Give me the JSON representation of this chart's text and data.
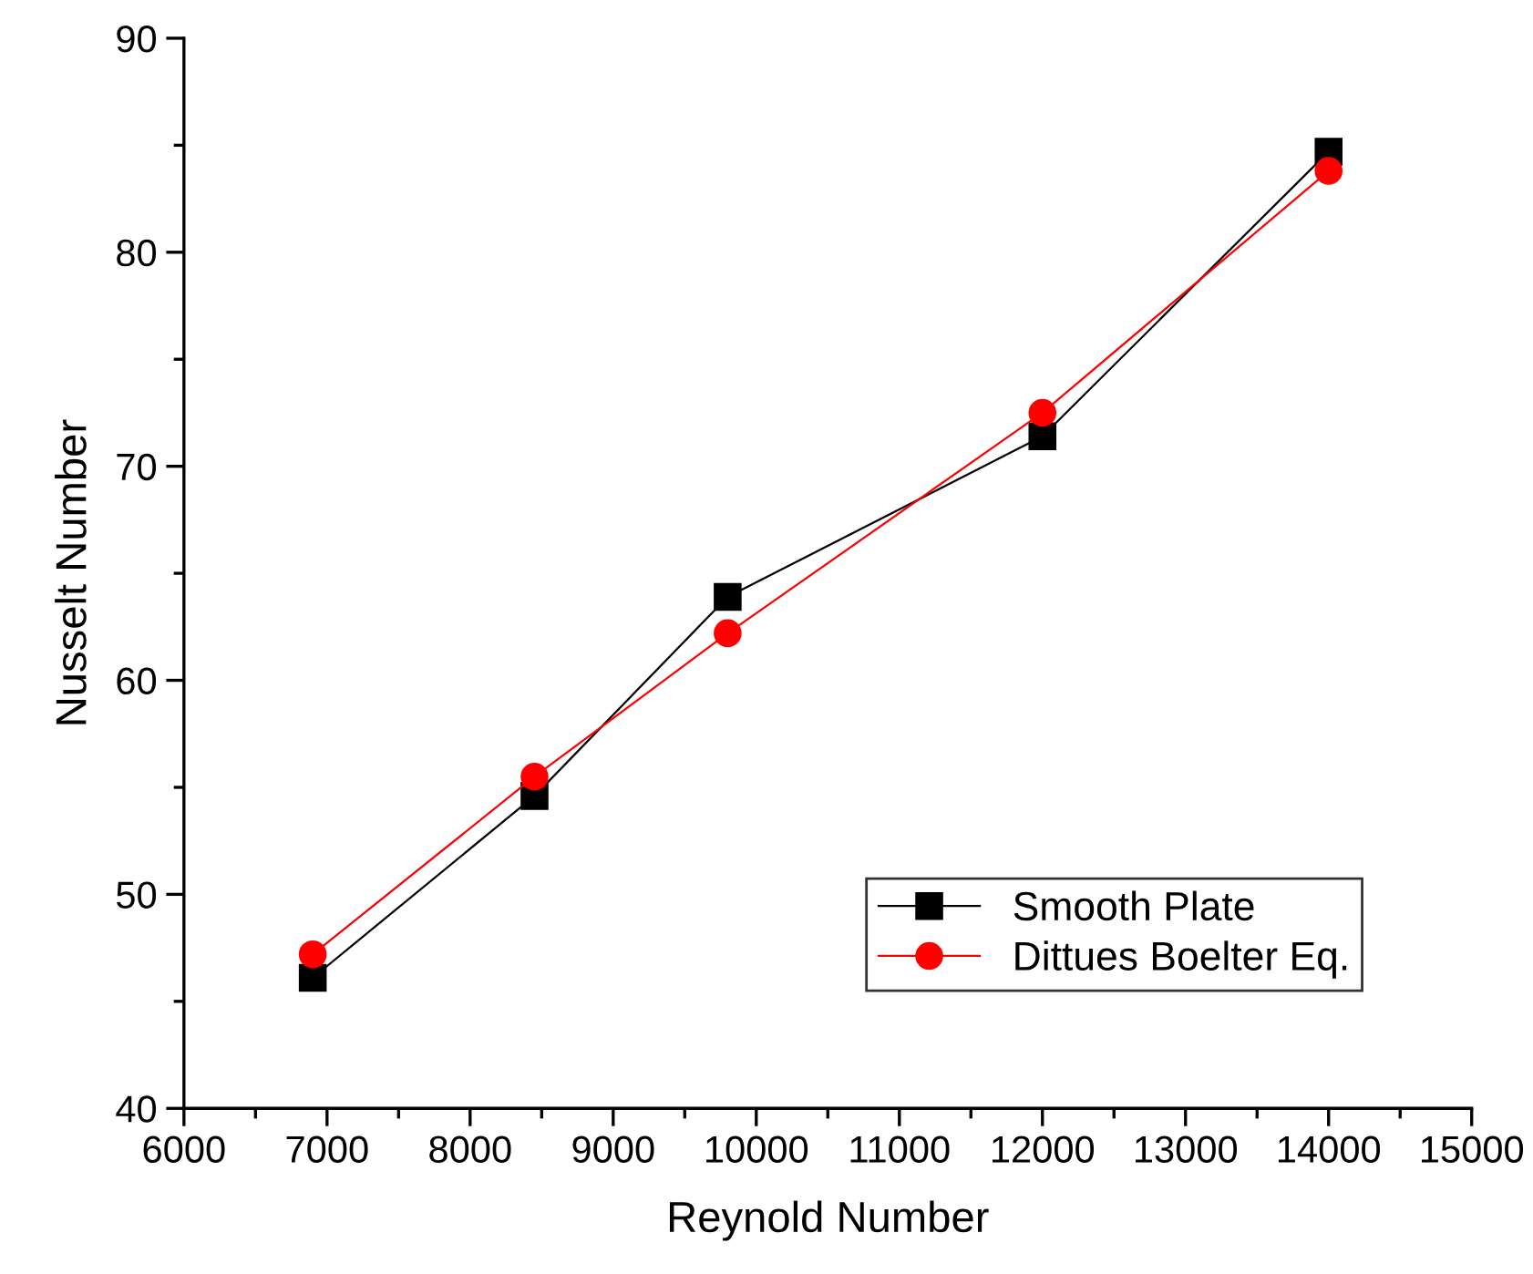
{
  "chart_data": {
    "type": "line",
    "xlabel": "Reynold Number",
    "ylabel": "Nusselt Number",
    "x": [
      6900,
      8450,
      9800,
      12000,
      14000
    ],
    "series": [
      {
        "name": "Smooth Plate",
        "color": "#000000",
        "marker": "square",
        "values": [
          46.1,
          54.6,
          63.9,
          71.4,
          84.7
        ]
      },
      {
        "name": "Dittues Boelter Eq.",
        "color": "#ff0000",
        "marker": "circle",
        "values": [
          47.2,
          55.5,
          62.2,
          72.5,
          83.8
        ]
      }
    ],
    "xlim": [
      6000,
      15000
    ],
    "xticks": [
      6000,
      7000,
      8000,
      9000,
      10000,
      11000,
      12000,
      13000,
      14000,
      15000
    ],
    "ylim": [
      40,
      90
    ],
    "yticks": [
      40,
      50,
      60,
      70,
      80,
      90
    ],
    "grid": false,
    "legend": "bottom right",
    "line_style": "solid"
  }
}
